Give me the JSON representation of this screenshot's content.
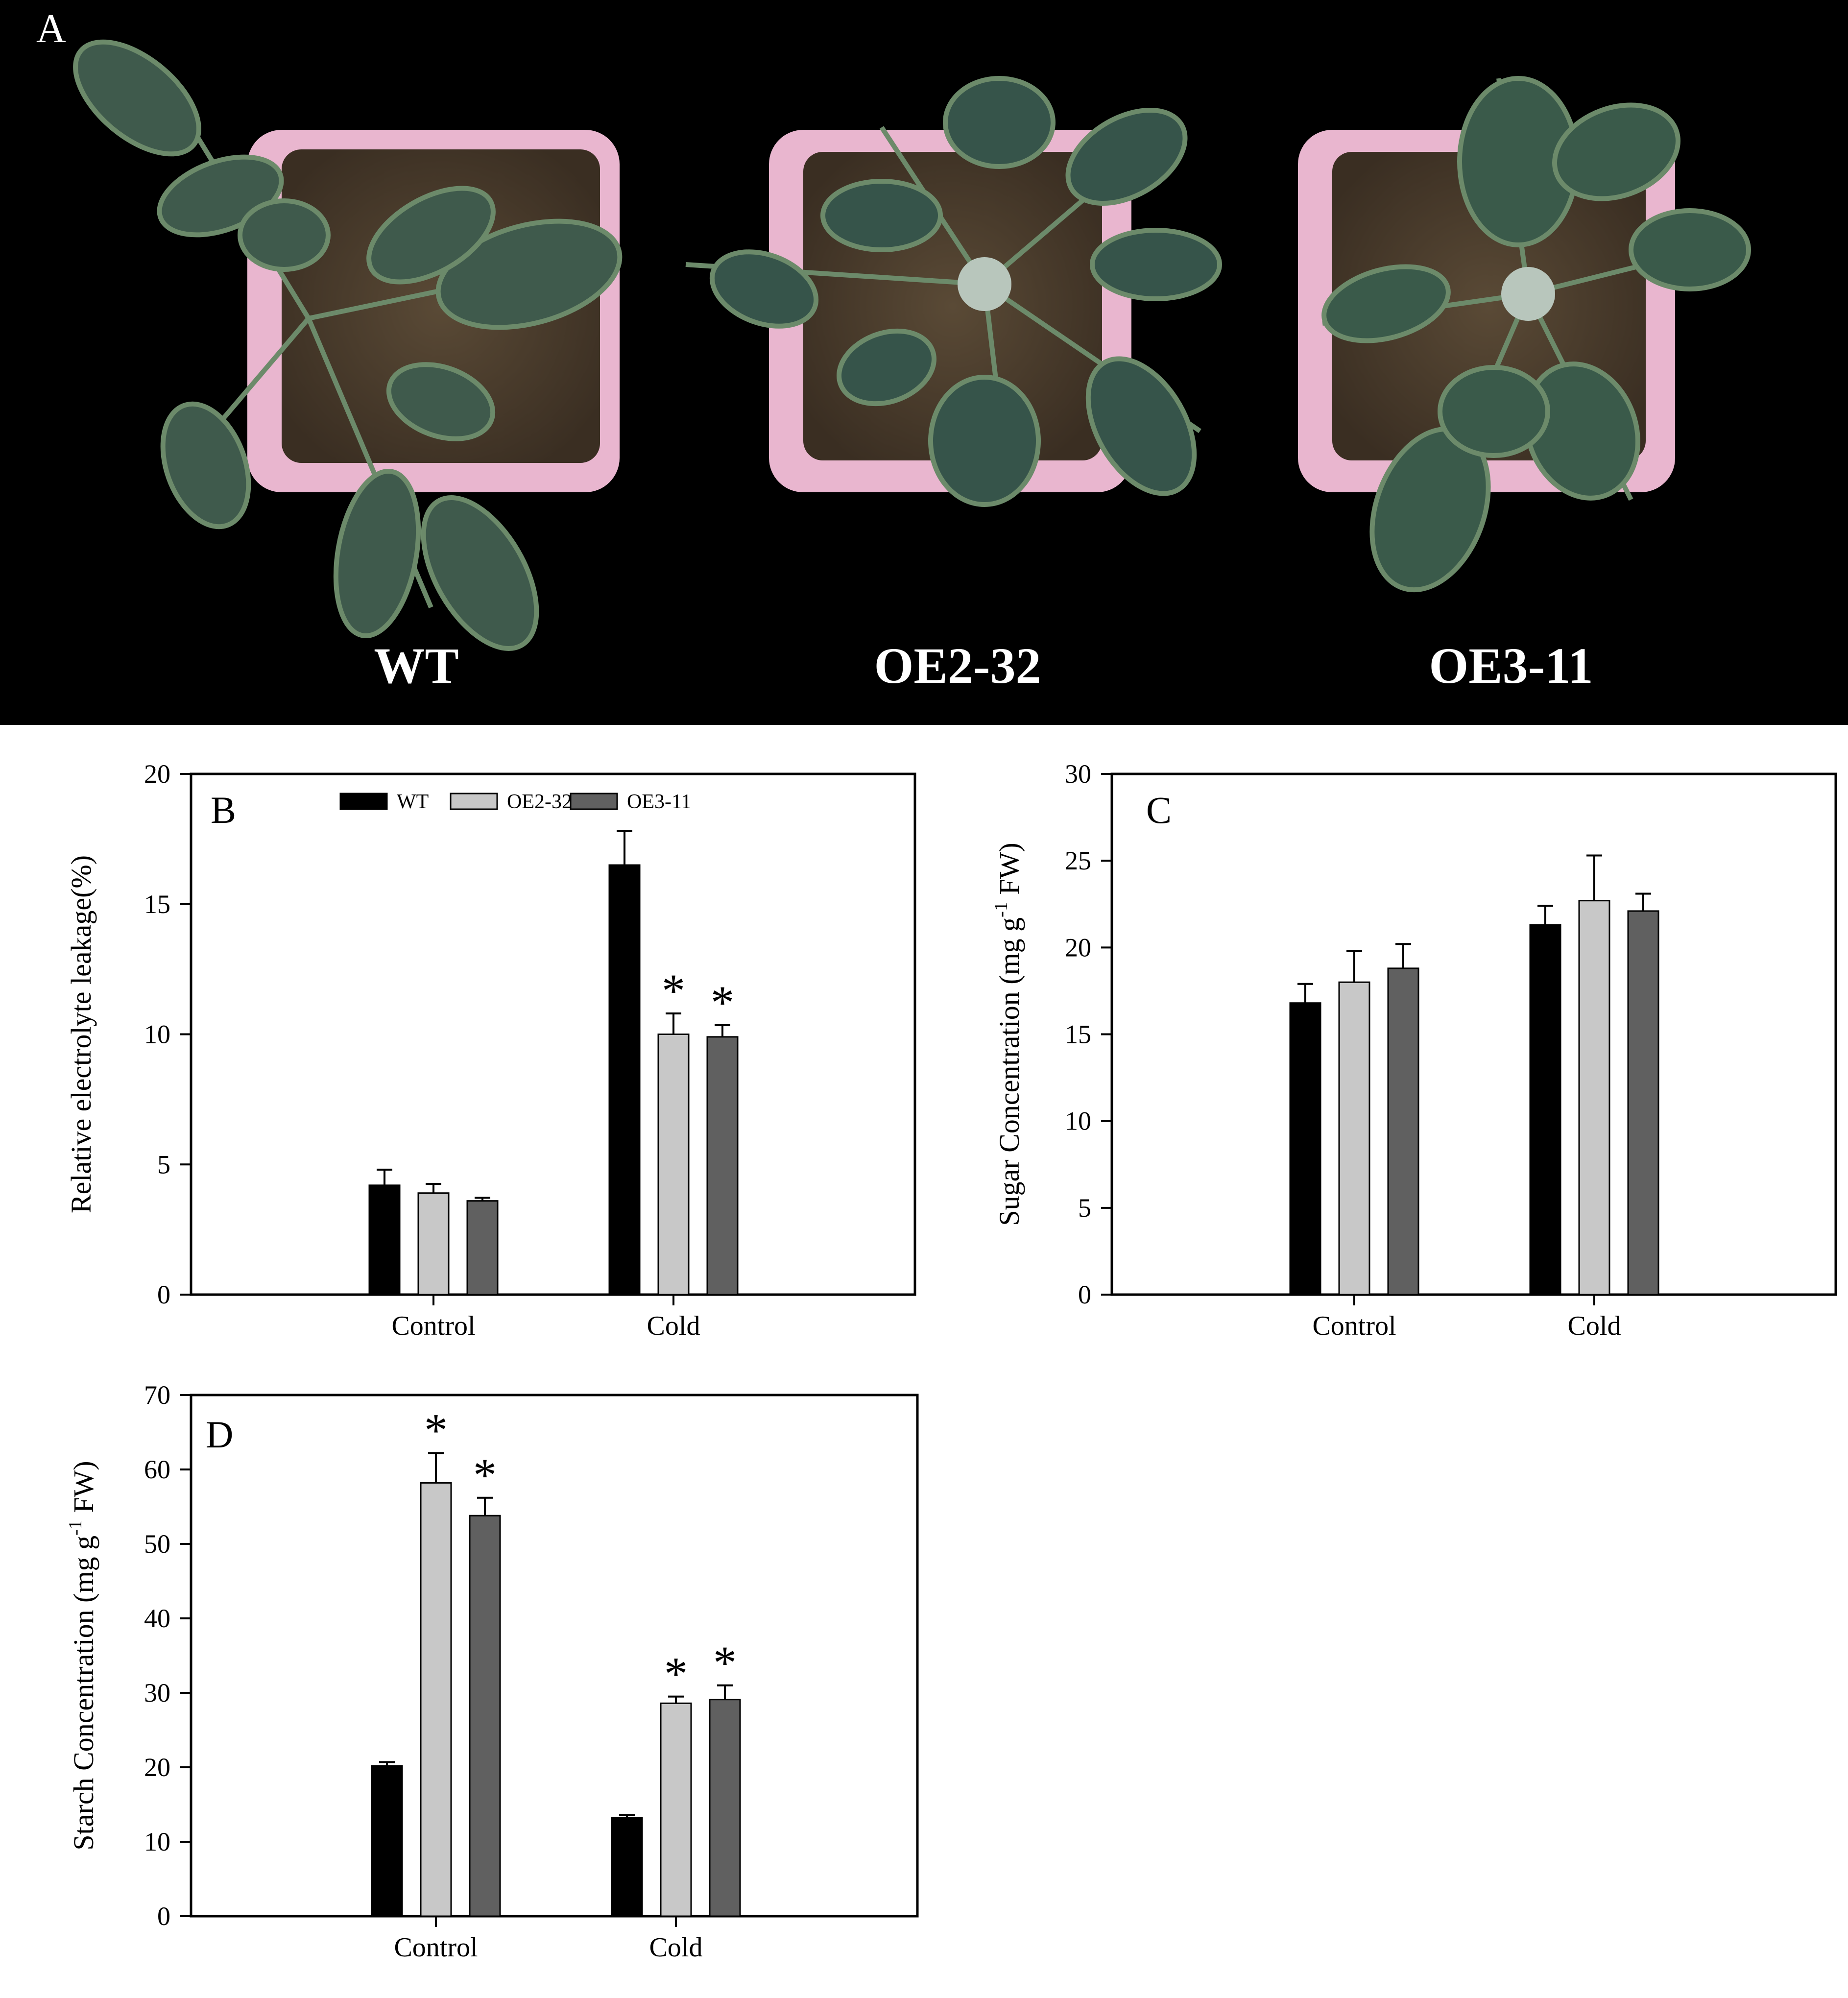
{
  "photo": {
    "panel_label": "A",
    "plants": [
      "WT",
      "OE2-32",
      "OE3-11"
    ]
  },
  "colors": {
    "WT": "#000000",
    "OE2-32": "#c8c8c8",
    "OE3-11": "#606060"
  },
  "chart_data": [
    {
      "id": "B",
      "type": "bar",
      "panel_label": "B",
      "categories": [
        "Control",
        "Cold"
      ],
      "ylabel": "Relative electrolyte leakage(%)",
      "ylim": [
        0,
        20
      ],
      "yticks": [
        0,
        5,
        10,
        15,
        20
      ],
      "legend": {
        "position": "top-center",
        "entries": [
          "WT",
          "OE2-32",
          "OE3-11"
        ]
      },
      "series": [
        {
          "name": "WT",
          "values": [
            4.2,
            16.5
          ],
          "errors": [
            0.6,
            1.3
          ],
          "sig": [
            false,
            false
          ]
        },
        {
          "name": "OE2-32",
          "values": [
            3.9,
            10.0
          ],
          "errors": [
            0.35,
            0.8
          ],
          "sig": [
            false,
            true
          ]
        },
        {
          "name": "OE3-11",
          "values": [
            3.6,
            9.9
          ],
          "errors": [
            0.12,
            0.45
          ],
          "sig": [
            false,
            true
          ]
        }
      ]
    },
    {
      "id": "C",
      "type": "bar",
      "panel_label": "C",
      "categories": [
        "Control",
        "Cold"
      ],
      "ylabel": "Sugar Concentration (mg g",
      "ylabel_sup": "-1",
      "ylabel_tail": " FW)",
      "ylim": [
        0,
        30
      ],
      "yticks": [
        0,
        5,
        10,
        15,
        20,
        25,
        30
      ],
      "series": [
        {
          "name": "WT",
          "values": [
            16.8,
            21.3
          ],
          "errors": [
            1.1,
            1.1
          ],
          "sig": [
            false,
            false
          ]
        },
        {
          "name": "OE2-32",
          "values": [
            18.0,
            22.7
          ],
          "errors": [
            1.8,
            2.6
          ],
          "sig": [
            false,
            false
          ]
        },
        {
          "name": "OE3-11",
          "values": [
            18.8,
            22.1
          ],
          "errors": [
            1.4,
            1.0
          ],
          "sig": [
            false,
            false
          ]
        }
      ]
    },
    {
      "id": "D",
      "type": "bar",
      "panel_label": "D",
      "categories": [
        "Control",
        "Cold"
      ],
      "ylabel": "Starch Concentration (mg g",
      "ylabel_sup": "-1",
      "ylabel_tail": " FW)",
      "ylim": [
        0,
        70
      ],
      "yticks": [
        0,
        10,
        20,
        30,
        40,
        50,
        60,
        70
      ],
      "series": [
        {
          "name": "WT",
          "values": [
            20.2,
            13.2
          ],
          "errors": [
            0.5,
            0.4
          ],
          "sig": [
            false,
            false
          ]
        },
        {
          "name": "OE2-32",
          "values": [
            58.2,
            28.6
          ],
          "errors": [
            4.0,
            0.9
          ],
          "sig": [
            true,
            true
          ]
        },
        {
          "name": "OE3-11",
          "values": [
            53.8,
            29.1
          ],
          "errors": [
            2.4,
            1.9
          ],
          "sig": [
            true,
            true
          ]
        }
      ]
    }
  ],
  "significance_mark": "*"
}
